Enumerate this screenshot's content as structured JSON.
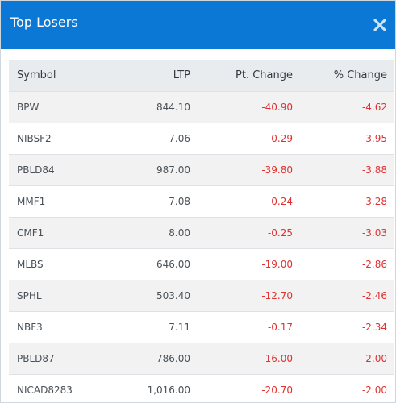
{
  "modal": {
    "title": "Top Losers",
    "close_icon": "close-icon",
    "header_color": "#0a78d4"
  },
  "table": {
    "headers": {
      "symbol": "Symbol",
      "ltp": "LTP",
      "pt_change": "Pt. Change",
      "pct_change": "% Change"
    },
    "negative_color": "#e03131",
    "rows": [
      {
        "symbol": "BPW",
        "ltp": "844.10",
        "pt_change": "-40.90",
        "pct_change": "-4.62"
      },
      {
        "symbol": "NIBSF2",
        "ltp": "7.06",
        "pt_change": "-0.29",
        "pct_change": "-3.95"
      },
      {
        "symbol": "PBLD84",
        "ltp": "987.00",
        "pt_change": "-39.80",
        "pct_change": "-3.88"
      },
      {
        "symbol": "MMF1",
        "ltp": "7.08",
        "pt_change": "-0.24",
        "pct_change": "-3.28"
      },
      {
        "symbol": "CMF1",
        "ltp": "8.00",
        "pt_change": "-0.25",
        "pct_change": "-3.03"
      },
      {
        "symbol": "MLBS",
        "ltp": "646.00",
        "pt_change": "-19.00",
        "pct_change": "-2.86"
      },
      {
        "symbol": "SPHL",
        "ltp": "503.40",
        "pt_change": "-12.70",
        "pct_change": "-2.46"
      },
      {
        "symbol": "NBF3",
        "ltp": "7.11",
        "pt_change": "-0.17",
        "pct_change": "-2.34"
      },
      {
        "symbol": "PBLD87",
        "ltp": "786.00",
        "pt_change": "-16.00",
        "pct_change": "-2.00"
      },
      {
        "symbol": "NICAD8283",
        "ltp": "1,016.00",
        "pt_change": "-20.70",
        "pct_change": "-2.00"
      }
    ]
  }
}
